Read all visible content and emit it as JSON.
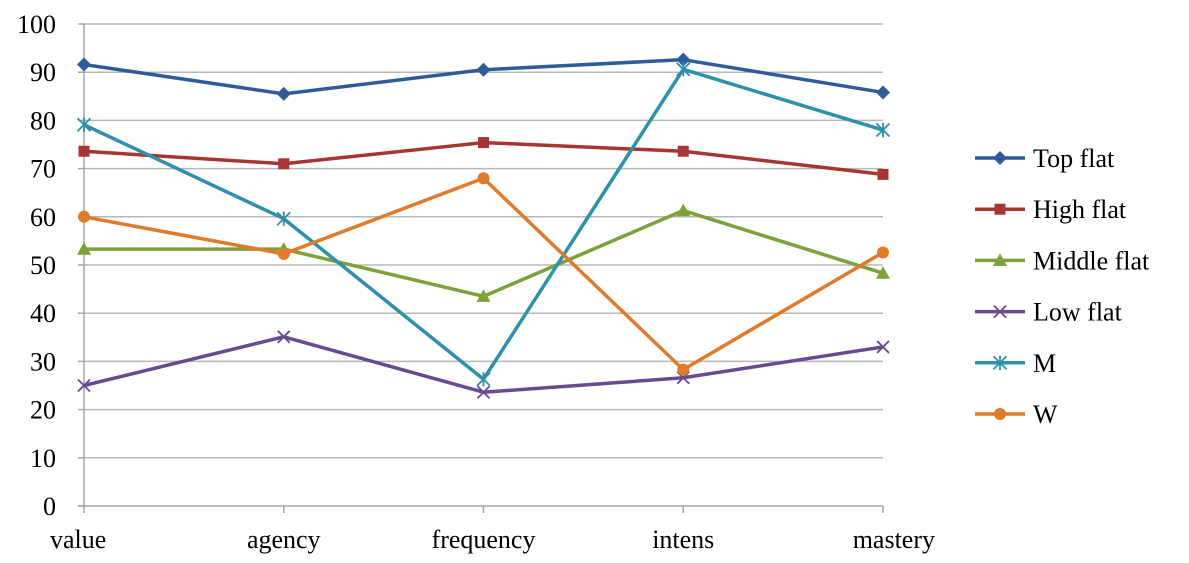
{
  "chart_data": {
    "type": "line",
    "title": "",
    "xlabel": "",
    "ylabel": "",
    "categories": [
      "value",
      "agency",
      "frequency",
      "intens",
      "mastery"
    ],
    "ylim": [
      0,
      100
    ],
    "yticks": [
      0,
      10,
      20,
      30,
      40,
      50,
      60,
      70,
      80,
      90,
      100
    ],
    "grid": "horizontal",
    "legend_position": "right",
    "series": [
      {
        "name": "Top flat",
        "color": "#2e5b9a",
        "marker": "diamond",
        "values": [
          91.6,
          85.5,
          90.5,
          92.6,
          85.8
        ]
      },
      {
        "name": "High flat",
        "color": "#a93532",
        "marker": "square",
        "values": [
          73.6,
          71.0,
          75.4,
          73.6,
          68.8
        ]
      },
      {
        "name": "Middle flat",
        "color": "#7ea13a",
        "marker": "triangle",
        "values": [
          53.3,
          53.3,
          43.5,
          61.3,
          48.3
        ]
      },
      {
        "name": "Low flat",
        "color": "#6a4a8e",
        "marker": "x",
        "values": [
          25.0,
          35.1,
          23.6,
          26.6,
          33.0
        ]
      },
      {
        "name": "M",
        "color": "#2e91ab",
        "marker": "asterisk",
        "values": [
          79.1,
          59.6,
          26.3,
          90.6,
          78.0
        ]
      },
      {
        "name": "W",
        "color": "#e07b2a",
        "marker": "circle",
        "values": [
          60.0,
          52.3,
          68.0,
          28.3,
          52.6
        ]
      }
    ]
  }
}
